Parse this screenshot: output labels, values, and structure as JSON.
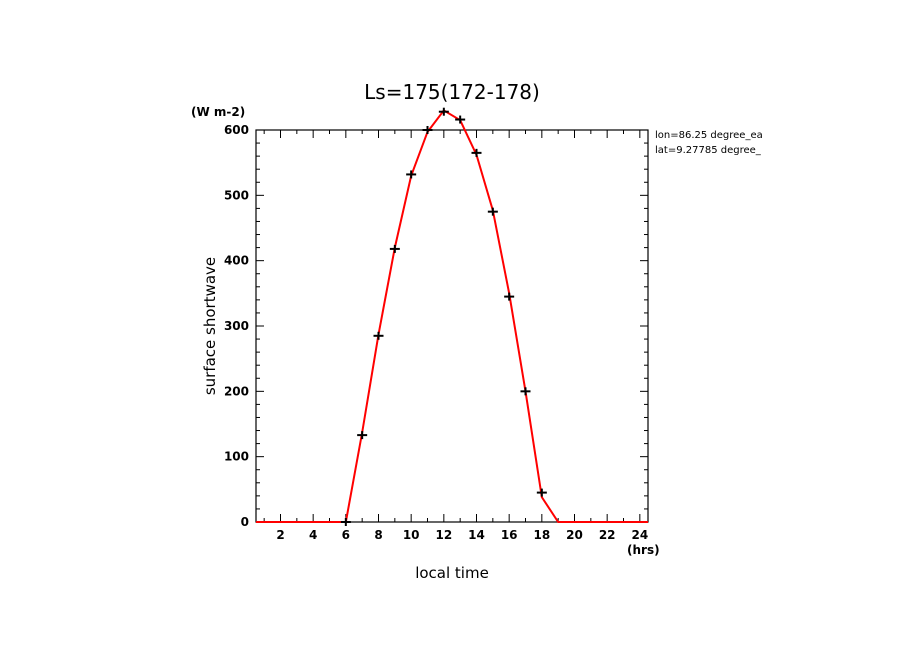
{
  "chart_data": {
    "type": "line",
    "title": "Ls=175(172-178)",
    "xlabel": "local time",
    "ylabel": "surface shortwave",
    "x_unit": "(hrs)",
    "y_unit": "(W m-2)",
    "xlim": [
      0.5,
      24.5
    ],
    "ylim": [
      0,
      600
    ],
    "x_ticks_major": [
      2,
      4,
      6,
      8,
      10,
      12,
      14,
      16,
      18,
      20,
      22,
      24
    ],
    "y_ticks_major": [
      0,
      100,
      200,
      300,
      400,
      500,
      600
    ],
    "annotations": [
      "lon=86.25 degree_ea",
      "lat=9.27785 degree_"
    ],
    "series": [
      {
        "color": "#ff0000",
        "marker": "none",
        "x": [
          0.5,
          1,
          2,
          3,
          4,
          5,
          6,
          7,
          8,
          9,
          10,
          11,
          12,
          13,
          14,
          15,
          16,
          17,
          18,
          19,
          20,
          21,
          22,
          23,
          24,
          24.5
        ],
        "y": [
          0,
          0,
          0,
          0,
          0,
          0,
          0,
          137,
          287,
          420,
          530,
          597,
          630,
          615,
          562,
          477,
          350,
          200,
          38,
          0,
          0,
          0,
          0,
          0,
          0,
          0
        ]
      },
      {
        "color": "#000000",
        "marker": "plus",
        "x": [
          6,
          7,
          8,
          9,
          10,
          11,
          12,
          13,
          14,
          15,
          16,
          17,
          18
        ],
        "y": [
          0,
          133,
          285,
          418,
          532,
          600,
          628,
          616,
          565,
          475,
          345,
          200,
          45
        ]
      }
    ]
  }
}
